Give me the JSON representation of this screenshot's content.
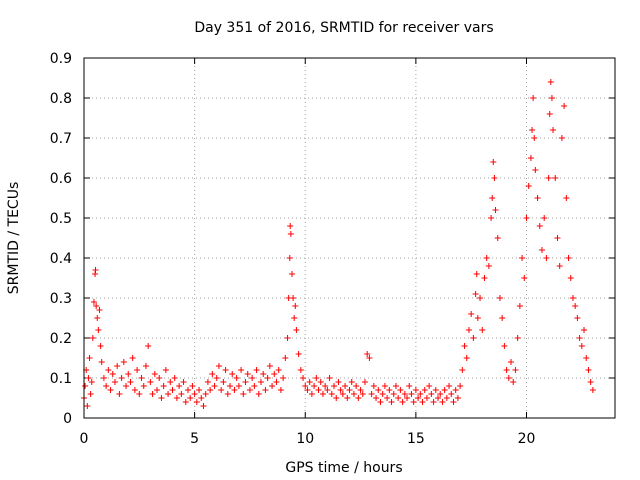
{
  "chart_data": {
    "type": "scatter",
    "title": "Day 351 of 2016, SRMTID for receiver vars",
    "xlabel": "GPS time / hours",
    "ylabel": "SRMTID / TECUs",
    "xlim": [
      0,
      24
    ],
    "ylim": [
      0,
      0.9
    ],
    "grid": true,
    "marker": "+",
    "color": "#ff0000",
    "xticks": [
      0,
      5,
      10,
      15,
      20
    ],
    "xtick_labels": [
      "0",
      "5",
      "10",
      "15",
      "20"
    ],
    "yticks": [
      0,
      0.1,
      0.2,
      0.3,
      0.4,
      0.5,
      0.6,
      0.7,
      0.8,
      0.9
    ],
    "ytick_labels": [
      "0",
      "0.1",
      "0.2",
      "0.3",
      "0.4",
      "0.5",
      "0.6",
      "0.7",
      "0.8",
      "0.9"
    ],
    "series": [
      {
        "name": "SRMTID",
        "points": [
          [
            0.0,
            0.05
          ],
          [
            0.05,
            0.08
          ],
          [
            0.1,
            0.12
          ],
          [
            0.15,
            0.03
          ],
          [
            0.2,
            0.1
          ],
          [
            0.25,
            0.15
          ],
          [
            0.3,
            0.06
          ],
          [
            0.35,
            0.09
          ],
          [
            0.4,
            0.2
          ],
          [
            0.45,
            0.29
          ],
          [
            0.5,
            0.36
          ],
          [
            0.52,
            0.37
          ],
          [
            0.55,
            0.28
          ],
          [
            0.6,
            0.25
          ],
          [
            0.65,
            0.22
          ],
          [
            0.7,
            0.27
          ],
          [
            0.75,
            0.18
          ],
          [
            0.8,
            0.14
          ],
          [
            0.9,
            0.1
          ],
          [
            1.0,
            0.08
          ],
          [
            1.1,
            0.12
          ],
          [
            1.2,
            0.07
          ],
          [
            1.3,
            0.11
          ],
          [
            1.4,
            0.09
          ],
          [
            1.5,
            0.13
          ],
          [
            1.6,
            0.06
          ],
          [
            1.7,
            0.1
          ],
          [
            1.8,
            0.14
          ],
          [
            1.9,
            0.08
          ],
          [
            2.0,
            0.11
          ],
          [
            2.1,
            0.09
          ],
          [
            2.2,
            0.15
          ],
          [
            2.3,
            0.07
          ],
          [
            2.4,
            0.12
          ],
          [
            2.5,
            0.06
          ],
          [
            2.6,
            0.1
          ],
          [
            2.7,
            0.08
          ],
          [
            2.8,
            0.13
          ],
          [
            2.9,
            0.18
          ],
          [
            3.0,
            0.09
          ],
          [
            3.1,
            0.06
          ],
          [
            3.2,
            0.11
          ],
          [
            3.3,
            0.07
          ],
          [
            3.4,
            0.1
          ],
          [
            3.5,
            0.05
          ],
          [
            3.6,
            0.08
          ],
          [
            3.7,
            0.12
          ],
          [
            3.8,
            0.06
          ],
          [
            3.9,
            0.09
          ],
          [
            4.0,
            0.07
          ],
          [
            4.1,
            0.1
          ],
          [
            4.2,
            0.05
          ],
          [
            4.3,
            0.08
          ],
          [
            4.4,
            0.06
          ],
          [
            4.5,
            0.09
          ],
          [
            4.6,
            0.04
          ],
          [
            4.7,
            0.07
          ],
          [
            4.8,
            0.05
          ],
          [
            4.9,
            0.08
          ],
          [
            5.0,
            0.06
          ],
          [
            5.1,
            0.04
          ],
          [
            5.2,
            0.07
          ],
          [
            5.3,
            0.05
          ],
          [
            5.4,
            0.03
          ],
          [
            5.5,
            0.06
          ],
          [
            5.6,
            0.09
          ],
          [
            5.7,
            0.07
          ],
          [
            5.8,
            0.11
          ],
          [
            5.9,
            0.08
          ],
          [
            6.0,
            0.1
          ],
          [
            6.1,
            0.13
          ],
          [
            6.2,
            0.07
          ],
          [
            6.3,
            0.09
          ],
          [
            6.4,
            0.12
          ],
          [
            6.5,
            0.06
          ],
          [
            6.6,
            0.08
          ],
          [
            6.7,
            0.11
          ],
          [
            6.8,
            0.07
          ],
          [
            6.9,
            0.1
          ],
          [
            7.0,
            0.08
          ],
          [
            7.1,
            0.12
          ],
          [
            7.2,
            0.06
          ],
          [
            7.3,
            0.09
          ],
          [
            7.4,
            0.11
          ],
          [
            7.5,
            0.07
          ],
          [
            7.6,
            0.1
          ],
          [
            7.7,
            0.08
          ],
          [
            7.8,
            0.12
          ],
          [
            7.9,
            0.06
          ],
          [
            8.0,
            0.09
          ],
          [
            8.1,
            0.11
          ],
          [
            8.2,
            0.07
          ],
          [
            8.3,
            0.1
          ],
          [
            8.4,
            0.13
          ],
          [
            8.5,
            0.08
          ],
          [
            8.6,
            0.11
          ],
          [
            8.7,
            0.09
          ],
          [
            8.8,
            0.12
          ],
          [
            8.9,
            0.07
          ],
          [
            9.0,
            0.1
          ],
          [
            9.1,
            0.15
          ],
          [
            9.2,
            0.2
          ],
          [
            9.25,
            0.3
          ],
          [
            9.3,
            0.4
          ],
          [
            9.32,
            0.48
          ],
          [
            9.35,
            0.46
          ],
          [
            9.4,
            0.36
          ],
          [
            9.45,
            0.3
          ],
          [
            9.5,
            0.25
          ],
          [
            9.55,
            0.28
          ],
          [
            9.6,
            0.22
          ],
          [
            9.7,
            0.16
          ],
          [
            9.8,
            0.12
          ],
          [
            9.9,
            0.1
          ],
          [
            10.0,
            0.08
          ],
          [
            10.1,
            0.07
          ],
          [
            10.2,
            0.09
          ],
          [
            10.3,
            0.06
          ],
          [
            10.4,
            0.08
          ],
          [
            10.5,
            0.1
          ],
          [
            10.6,
            0.07
          ],
          [
            10.7,
            0.09
          ],
          [
            10.8,
            0.06
          ],
          [
            10.9,
            0.08
          ],
          [
            11.0,
            0.07
          ],
          [
            11.1,
            0.1
          ],
          [
            11.2,
            0.06
          ],
          [
            11.3,
            0.08
          ],
          [
            11.4,
            0.05
          ],
          [
            11.5,
            0.09
          ],
          [
            11.6,
            0.07
          ],
          [
            11.7,
            0.06
          ],
          [
            11.8,
            0.08
          ],
          [
            11.9,
            0.05
          ],
          [
            12.0,
            0.07
          ],
          [
            12.1,
            0.09
          ],
          [
            12.2,
            0.06
          ],
          [
            12.3,
            0.08
          ],
          [
            12.4,
            0.05
          ],
          [
            12.5,
            0.07
          ],
          [
            12.6,
            0.06
          ],
          [
            12.7,
            0.09
          ],
          [
            12.8,
            0.16
          ],
          [
            12.9,
            0.15
          ],
          [
            13.0,
            0.06
          ],
          [
            13.1,
            0.08
          ],
          [
            13.2,
            0.05
          ],
          [
            13.3,
            0.07
          ],
          [
            13.4,
            0.04
          ],
          [
            13.5,
            0.06
          ],
          [
            13.6,
            0.08
          ],
          [
            13.7,
            0.05
          ],
          [
            13.8,
            0.07
          ],
          [
            13.9,
            0.04
          ],
          [
            14.0,
            0.06
          ],
          [
            14.1,
            0.08
          ],
          [
            14.2,
            0.05
          ],
          [
            14.3,
            0.07
          ],
          [
            14.4,
            0.04
          ],
          [
            14.5,
            0.06
          ],
          [
            14.6,
            0.05
          ],
          [
            14.7,
            0.08
          ],
          [
            14.8,
            0.06
          ],
          [
            14.9,
            0.04
          ],
          [
            15.0,
            0.07
          ],
          [
            15.1,
            0.05
          ],
          [
            15.2,
            0.06
          ],
          [
            15.3,
            0.04
          ],
          [
            15.4,
            0.07
          ],
          [
            15.5,
            0.05
          ],
          [
            15.6,
            0.08
          ],
          [
            15.7,
            0.06
          ],
          [
            15.8,
            0.04
          ],
          [
            15.9,
            0.07
          ],
          [
            16.0,
            0.05
          ],
          [
            16.1,
            0.06
          ],
          [
            16.2,
            0.04
          ],
          [
            16.3,
            0.07
          ],
          [
            16.4,
            0.05
          ],
          [
            16.5,
            0.08
          ],
          [
            16.6,
            0.06
          ],
          [
            16.7,
            0.04
          ],
          [
            16.8,
            0.07
          ],
          [
            16.9,
            0.05
          ],
          [
            17.0,
            0.08
          ],
          [
            17.1,
            0.12
          ],
          [
            17.2,
            0.18
          ],
          [
            17.3,
            0.15
          ],
          [
            17.4,
            0.22
          ],
          [
            17.5,
            0.26
          ],
          [
            17.6,
            0.2
          ],
          [
            17.7,
            0.31
          ],
          [
            17.75,
            0.36
          ],
          [
            17.8,
            0.25
          ],
          [
            17.9,
            0.3
          ],
          [
            18.0,
            0.22
          ],
          [
            18.1,
            0.35
          ],
          [
            18.2,
            0.4
          ],
          [
            18.3,
            0.38
          ],
          [
            18.4,
            0.5
          ],
          [
            18.45,
            0.55
          ],
          [
            18.5,
            0.64
          ],
          [
            18.55,
            0.6
          ],
          [
            18.6,
            0.52
          ],
          [
            18.7,
            0.45
          ],
          [
            18.8,
            0.3
          ],
          [
            18.9,
            0.25
          ],
          [
            19.0,
            0.18
          ],
          [
            19.1,
            0.12
          ],
          [
            19.2,
            0.1
          ],
          [
            19.3,
            0.14
          ],
          [
            19.4,
            0.09
          ],
          [
            19.5,
            0.12
          ],
          [
            19.6,
            0.2
          ],
          [
            19.7,
            0.28
          ],
          [
            19.8,
            0.4
          ],
          [
            19.9,
            0.35
          ],
          [
            20.0,
            0.5
          ],
          [
            20.1,
            0.58
          ],
          [
            20.2,
            0.65
          ],
          [
            20.25,
            0.72
          ],
          [
            20.3,
            0.8
          ],
          [
            20.35,
            0.7
          ],
          [
            20.4,
            0.62
          ],
          [
            20.5,
            0.55
          ],
          [
            20.6,
            0.48
          ],
          [
            20.7,
            0.42
          ],
          [
            20.8,
            0.5
          ],
          [
            20.9,
            0.4
          ],
          [
            21.0,
            0.6
          ],
          [
            21.05,
            0.76
          ],
          [
            21.1,
            0.84
          ],
          [
            21.15,
            0.8
          ],
          [
            21.2,
            0.72
          ],
          [
            21.3,
            0.6
          ],
          [
            21.4,
            0.45
          ],
          [
            21.5,
            0.38
          ],
          [
            21.6,
            0.7
          ],
          [
            21.7,
            0.78
          ],
          [
            21.8,
            0.55
          ],
          [
            21.9,
            0.4
          ],
          [
            22.0,
            0.35
          ],
          [
            22.1,
            0.3
          ],
          [
            22.2,
            0.28
          ],
          [
            22.3,
            0.25
          ],
          [
            22.4,
            0.2
          ],
          [
            22.5,
            0.18
          ],
          [
            22.6,
            0.22
          ],
          [
            22.7,
            0.15
          ],
          [
            22.8,
            0.12
          ],
          [
            22.9,
            0.09
          ],
          [
            23.0,
            0.07
          ]
        ]
      }
    ]
  }
}
